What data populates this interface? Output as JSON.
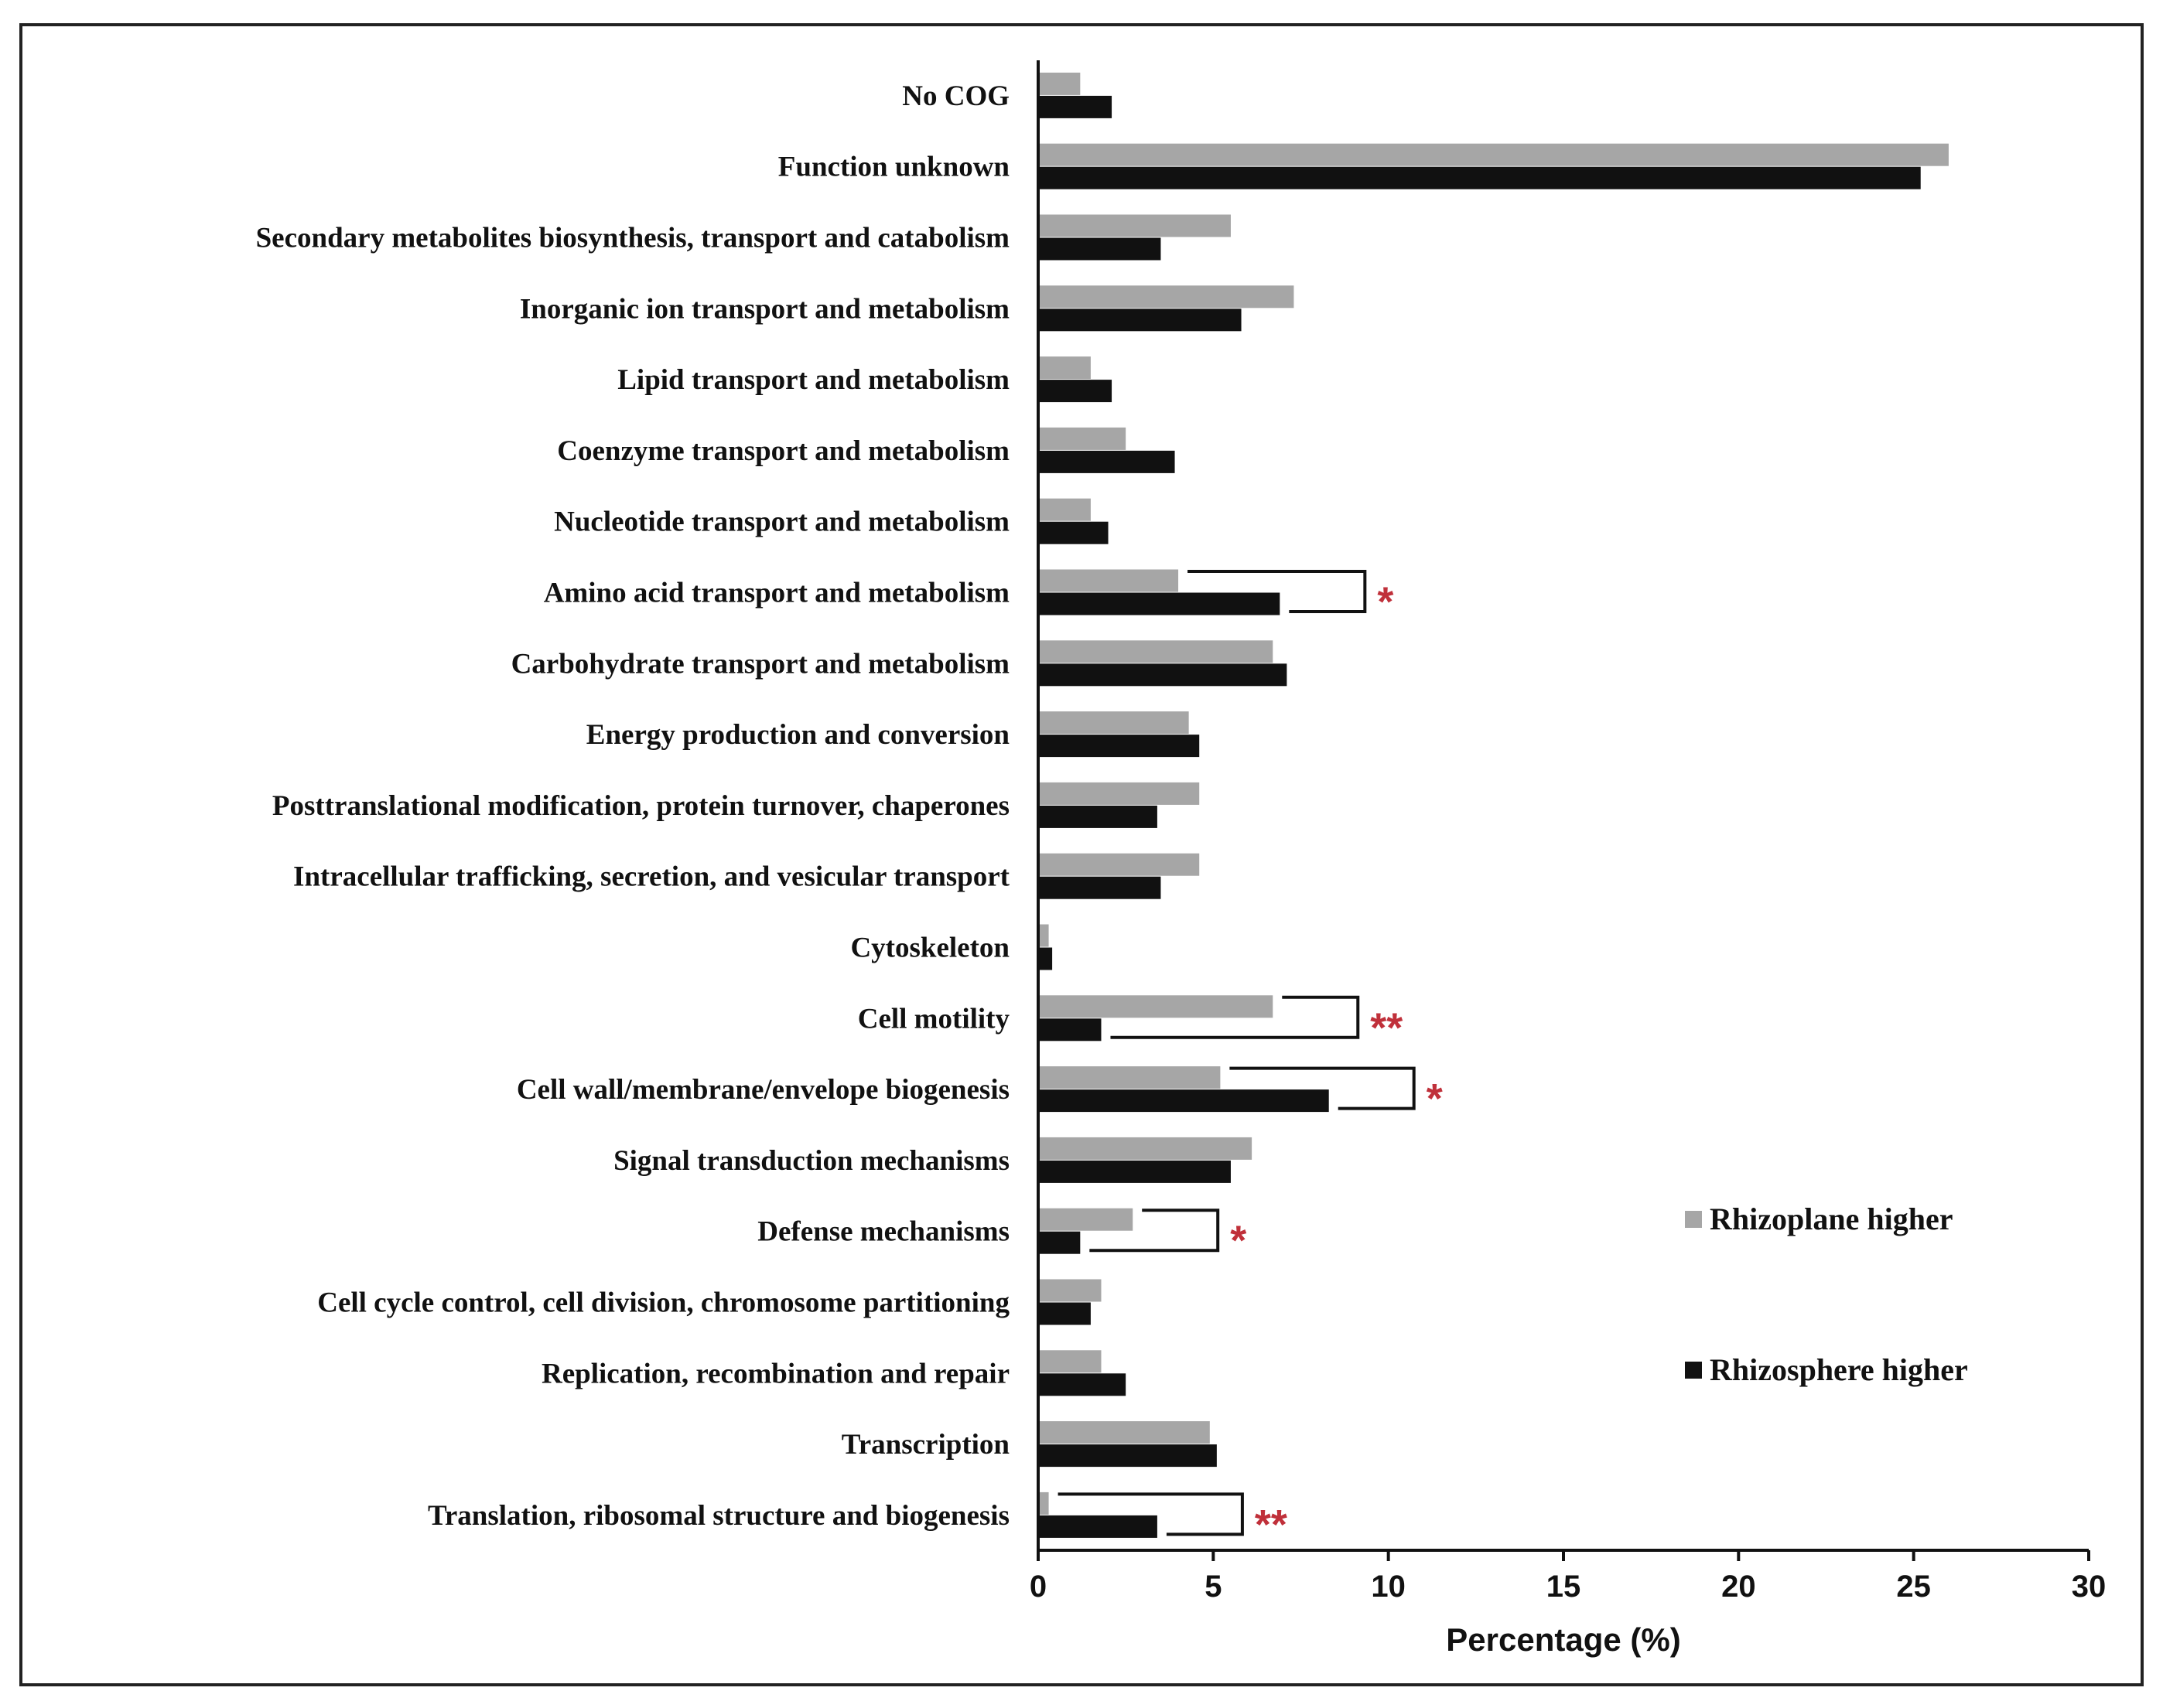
{
  "chart_data": {
    "type": "bar",
    "orientation": "horizontal",
    "title": "",
    "xlabel": "Percentage (%)",
    "ylabel": "",
    "xlim": [
      0,
      30
    ],
    "xticks": [
      0,
      5,
      10,
      15,
      20,
      25,
      30
    ],
    "grid": false,
    "categories": [
      "No COG",
      "Function unknown",
      "Secondary metabolites biosynthesis, transport and catabolism",
      "Inorganic ion transport and metabolism",
      "Lipid transport and metabolism",
      "Coenzyme transport and metabolism",
      "Nucleotide transport and metabolism",
      "Amino acid transport and metabolism",
      "Carbohydrate transport and metabolism",
      "Energy production and conversion",
      "Posttranslational modification, protein turnover, chaperones",
      "Intracellular trafficking, secretion, and vesicular transport",
      "Cytoskeleton",
      "Cell motility",
      "Cell wall/membrane/envelope biogenesis",
      "Signal transduction mechanisms",
      "Defense mechanisms",
      "Cell cycle control, cell division, chromosome partitioning",
      "Replication, recombination and repair",
      "Transcription",
      "Translation, ribosomal structure and biogenesis"
    ],
    "series": [
      {
        "name": "Rhizoplane higher",
        "color": "#a6a6a6",
        "values": [
          1.2,
          26.0,
          5.5,
          7.3,
          1.5,
          2.5,
          1.5,
          4.0,
          6.7,
          4.3,
          4.6,
          4.6,
          0.3,
          6.7,
          5.2,
          6.1,
          2.7,
          1.8,
          1.8,
          4.9,
          0.3
        ]
      },
      {
        "name": "Rhizosphere higher",
        "color": "#111111",
        "values": [
          2.1,
          25.2,
          3.5,
          5.8,
          2.1,
          3.9,
          2.0,
          6.9,
          7.1,
          4.6,
          3.4,
          3.5,
          0.4,
          1.8,
          8.3,
          5.5,
          1.2,
          1.5,
          2.5,
          5.1,
          3.4
        ]
      }
    ],
    "annotations": [
      {
        "category": "Amino acid transport and metabolism",
        "text": "*",
        "color": "#c0303a"
      },
      {
        "category": "Cell motility",
        "text": "**",
        "color": "#c0303a"
      },
      {
        "category": "Cell wall/membrane/envelope biogenesis",
        "text": "*",
        "color": "#c0303a"
      },
      {
        "category": "Defense mechanisms",
        "text": "*",
        "color": "#c0303a"
      },
      {
        "category": "Translation, ribosomal structure and biogenesis",
        "text": "**",
        "color": "#c0303a"
      }
    ],
    "legend": {
      "placement": "right",
      "entries": [
        "Rhizoplane higher",
        "Rhizosphere higher"
      ]
    }
  }
}
